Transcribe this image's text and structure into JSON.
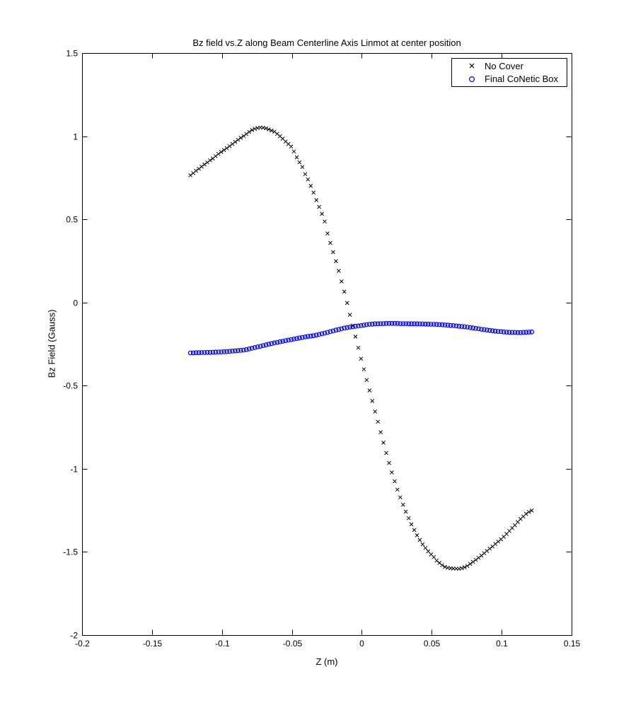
{
  "figure": {
    "title": "Bz field vs.Z along Beam Centerline Axis Linmot at center position",
    "xlabel": "Z (m)",
    "ylabel": "Bz Field (Gauss)"
  },
  "legend": {
    "items": [
      {
        "label": "No Cover",
        "marker": "x",
        "color": "#000000"
      },
      {
        "label": "Final CoNetic Box",
        "marker": "circle",
        "color": "#0000ff"
      }
    ]
  },
  "chart_data": {
    "type": "scatter",
    "title": "Bz field vs.Z along Beam Centerline Axis Linmot at center position",
    "xlabel": "Z (m)",
    "ylabel": "Bz Field (Gauss)",
    "xlim": [
      -0.2,
      0.15
    ],
    "ylim": [
      -2,
      1.5
    ],
    "xticks": [
      -0.2,
      -0.15,
      -0.1,
      -0.05,
      0,
      0.05,
      0.1,
      0.15
    ],
    "xtick_labels": [
      "-0.2",
      "-0.15",
      "-0.1",
      "-0.05",
      "0",
      "0.05",
      "0.1",
      "0.15"
    ],
    "yticks": [
      1.5,
      1,
      0.5,
      0,
      -0.5,
      -1,
      -1.5,
      -2
    ],
    "ytick_labels": [
      "1.5",
      "1",
      "0.5",
      "0",
      "-0.5",
      "-1",
      "-1.5",
      "-2"
    ],
    "grid": false,
    "legend_position": "upper-right",
    "series": [
      {
        "name": "No Cover",
        "marker": "x",
        "color": "#000000",
        "points": [
          [
            -0.1225,
            0.765
          ],
          [
            -0.1205,
            0.778
          ],
          [
            -0.1185,
            0.792
          ],
          [
            -0.1165,
            0.804
          ],
          [
            -0.1145,
            0.817
          ],
          [
            -0.1125,
            0.83
          ],
          [
            -0.1105,
            0.842
          ],
          [
            -0.1085,
            0.855
          ],
          [
            -0.1065,
            0.866
          ],
          [
            -0.1045,
            0.88
          ],
          [
            -0.1025,
            0.893
          ],
          [
            -0.1005,
            0.905
          ],
          [
            -0.0985,
            0.917
          ],
          [
            -0.0965,
            0.928
          ],
          [
            -0.0945,
            0.94
          ],
          [
            -0.0925,
            0.953
          ],
          [
            -0.0905,
            0.966
          ],
          [
            -0.0885,
            0.978
          ],
          [
            -0.0865,
            0.99
          ],
          [
            -0.0845,
            1.001
          ],
          [
            -0.0825,
            1.013
          ],
          [
            -0.0805,
            1.026
          ],
          [
            -0.0785,
            1.037
          ],
          [
            -0.0765,
            1.044
          ],
          [
            -0.0745,
            1.049
          ],
          [
            -0.0725,
            1.052
          ],
          [
            -0.0705,
            1.051
          ],
          [
            -0.0685,
            1.047
          ],
          [
            -0.0665,
            1.041
          ],
          [
            -0.0645,
            1.034
          ],
          [
            -0.0625,
            1.027
          ],
          [
            -0.0605,
            1.014
          ],
          [
            -0.0585,
            1.0
          ],
          [
            -0.0565,
            0.985
          ],
          [
            -0.0545,
            0.968
          ],
          [
            -0.0525,
            0.953
          ],
          [
            -0.0505,
            0.938
          ],
          [
            -0.0485,
            0.908
          ],
          [
            -0.0465,
            0.873
          ],
          [
            -0.0445,
            0.843
          ],
          [
            -0.0425,
            0.815
          ],
          [
            -0.0405,
            0.772
          ],
          [
            -0.0385,
            0.74
          ],
          [
            -0.0365,
            0.701
          ],
          [
            -0.0345,
            0.661
          ],
          [
            -0.0325,
            0.616
          ],
          [
            -0.0305,
            0.575
          ],
          [
            -0.0285,
            0.533
          ],
          [
            -0.0265,
            0.487
          ],
          [
            -0.0245,
            0.415
          ],
          [
            -0.0225,
            0.358
          ],
          [
            -0.0205,
            0.303
          ],
          [
            -0.0185,
            0.248
          ],
          [
            -0.0165,
            0.19
          ],
          [
            -0.0145,
            0.127
          ],
          [
            -0.0125,
            0.065
          ],
          [
            -0.0105,
            -0.003
          ],
          [
            -0.0085,
            -0.074
          ],
          [
            -0.0065,
            -0.14
          ],
          [
            -0.0045,
            -0.205
          ],
          [
            -0.0025,
            -0.272
          ],
          [
            -0.0005,
            -0.338
          ],
          [
            0.0015,
            -0.402
          ],
          [
            0.0035,
            -0.466
          ],
          [
            0.0055,
            -0.529
          ],
          [
            0.0075,
            -0.592
          ],
          [
            0.0095,
            -0.656
          ],
          [
            0.0115,
            -0.717
          ],
          [
            0.0135,
            -0.78
          ],
          [
            0.0155,
            -0.843
          ],
          [
            0.0175,
            -0.905
          ],
          [
            0.0195,
            -0.965
          ],
          [
            0.0215,
            -1.022
          ],
          [
            0.0235,
            -1.075
          ],
          [
            0.0255,
            -1.125
          ],
          [
            0.0275,
            -1.172
          ],
          [
            0.0295,
            -1.216
          ],
          [
            0.0315,
            -1.258
          ],
          [
            0.0335,
            -1.297
          ],
          [
            0.0355,
            -1.334
          ],
          [
            0.0375,
            -1.368
          ],
          [
            0.0395,
            -1.4
          ],
          [
            0.0415,
            -1.428
          ],
          [
            0.0435,
            -1.454
          ],
          [
            0.0455,
            -1.476
          ],
          [
            0.0475,
            -1.496
          ],
          [
            0.0495,
            -1.515
          ],
          [
            0.0515,
            -1.531
          ],
          [
            0.0535,
            -1.552
          ],
          [
            0.0555,
            -1.566
          ],
          [
            0.0575,
            -1.58
          ],
          [
            0.0595,
            -1.59
          ],
          [
            0.0615,
            -1.595
          ],
          [
            0.0635,
            -1.598
          ],
          [
            0.0655,
            -1.6
          ],
          [
            0.0675,
            -1.601
          ],
          [
            0.0695,
            -1.601
          ],
          [
            0.0715,
            -1.598
          ],
          [
            0.0735,
            -1.592
          ],
          [
            0.0755,
            -1.584
          ],
          [
            0.0775,
            -1.572
          ],
          [
            0.0795,
            -1.56
          ],
          [
            0.0815,
            -1.548
          ],
          [
            0.0835,
            -1.535
          ],
          [
            0.0855,
            -1.522
          ],
          [
            0.0875,
            -1.508
          ],
          [
            0.0895,
            -1.494
          ],
          [
            0.0915,
            -1.48
          ],
          [
            0.0935,
            -1.467
          ],
          [
            0.0955,
            -1.452
          ],
          [
            0.0975,
            -1.438
          ],
          [
            0.0995,
            -1.424
          ],
          [
            0.1015,
            -1.409
          ],
          [
            0.1035,
            -1.392
          ],
          [
            0.1055,
            -1.374
          ],
          [
            0.1075,
            -1.356
          ],
          [
            0.1095,
            -1.339
          ],
          [
            0.1115,
            -1.32
          ],
          [
            0.1135,
            -1.302
          ],
          [
            0.1155,
            -1.287
          ],
          [
            0.1175,
            -1.271
          ],
          [
            0.1195,
            -1.259
          ],
          [
            0.1215,
            -1.251
          ]
        ]
      },
      {
        "name": "Final CoNetic Box",
        "marker": "circle",
        "color": "#0000ff",
        "points": [
          [
            -0.1225,
            -0.303
          ],
          [
            -0.1205,
            -0.303
          ],
          [
            -0.1185,
            -0.302
          ],
          [
            -0.1165,
            -0.302
          ],
          [
            -0.1145,
            -0.301
          ],
          [
            -0.1125,
            -0.301
          ],
          [
            -0.1105,
            -0.3
          ],
          [
            -0.1085,
            -0.3
          ],
          [
            -0.1065,
            -0.299
          ],
          [
            -0.1045,
            -0.298
          ],
          [
            -0.1025,
            -0.297
          ],
          [
            -0.1005,
            -0.297
          ],
          [
            -0.0985,
            -0.296
          ],
          [
            -0.0965,
            -0.295
          ],
          [
            -0.0945,
            -0.294
          ],
          [
            -0.0925,
            -0.292
          ],
          [
            -0.0905,
            -0.291
          ],
          [
            -0.0885,
            -0.289
          ],
          [
            -0.0865,
            -0.288
          ],
          [
            -0.0845,
            -0.286
          ],
          [
            -0.0825,
            -0.283
          ],
          [
            -0.0805,
            -0.279
          ],
          [
            -0.0785,
            -0.275
          ],
          [
            -0.0765,
            -0.271
          ],
          [
            -0.0745,
            -0.267
          ],
          [
            -0.0725,
            -0.263
          ],
          [
            -0.0705,
            -0.259
          ],
          [
            -0.0685,
            -0.255
          ],
          [
            -0.0665,
            -0.251
          ],
          [
            -0.0645,
            -0.247
          ],
          [
            -0.0625,
            -0.243
          ],
          [
            -0.0605,
            -0.24
          ],
          [
            -0.0585,
            -0.236
          ],
          [
            -0.0565,
            -0.233
          ],
          [
            -0.0545,
            -0.229
          ],
          [
            -0.0525,
            -0.226
          ],
          [
            -0.0505,
            -0.223
          ],
          [
            -0.0485,
            -0.22
          ],
          [
            -0.0465,
            -0.217
          ],
          [
            -0.0445,
            -0.213
          ],
          [
            -0.0425,
            -0.21
          ],
          [
            -0.0405,
            -0.207
          ],
          [
            -0.0385,
            -0.204
          ],
          [
            -0.0365,
            -0.202
          ],
          [
            -0.0345,
            -0.2
          ],
          [
            -0.0325,
            -0.196
          ],
          [
            -0.0305,
            -0.192
          ],
          [
            -0.0285,
            -0.188
          ],
          [
            -0.0265,
            -0.184
          ],
          [
            -0.0245,
            -0.18
          ],
          [
            -0.0225,
            -0.175
          ],
          [
            -0.0205,
            -0.171
          ],
          [
            -0.0185,
            -0.166
          ],
          [
            -0.0165,
            -0.162
          ],
          [
            -0.0145,
            -0.158
          ],
          [
            -0.0125,
            -0.154
          ],
          [
            -0.0105,
            -0.151
          ],
          [
            -0.0085,
            -0.148
          ],
          [
            -0.0065,
            -0.146
          ],
          [
            -0.0045,
            -0.143
          ],
          [
            -0.0025,
            -0.141
          ],
          [
            -0.0005,
            -0.139
          ],
          [
            0.0015,
            -0.136
          ],
          [
            0.0035,
            -0.133
          ],
          [
            0.0055,
            -0.131
          ],
          [
            0.0075,
            -0.13
          ],
          [
            0.0095,
            -0.128
          ],
          [
            0.0115,
            -0.128
          ],
          [
            0.0135,
            -0.127
          ],
          [
            0.0155,
            -0.127
          ],
          [
            0.0175,
            -0.126
          ],
          [
            0.0195,
            -0.126
          ],
          [
            0.0215,
            -0.126
          ],
          [
            0.0235,
            -0.126
          ],
          [
            0.0255,
            -0.126
          ],
          [
            0.0275,
            -0.127
          ],
          [
            0.0295,
            -0.127
          ],
          [
            0.0315,
            -0.127
          ],
          [
            0.0335,
            -0.128
          ],
          [
            0.0355,
            -0.128
          ],
          [
            0.0375,
            -0.128
          ],
          [
            0.0395,
            -0.128
          ],
          [
            0.0415,
            -0.129
          ],
          [
            0.0435,
            -0.129
          ],
          [
            0.0455,
            -0.13
          ],
          [
            0.0475,
            -0.13
          ],
          [
            0.0495,
            -0.131
          ],
          [
            0.0515,
            -0.131
          ],
          [
            0.0535,
            -0.132
          ],
          [
            0.0555,
            -0.133
          ],
          [
            0.0575,
            -0.134
          ],
          [
            0.0595,
            -0.135
          ],
          [
            0.0615,
            -0.136
          ],
          [
            0.0635,
            -0.138
          ],
          [
            0.0655,
            -0.139
          ],
          [
            0.0675,
            -0.141
          ],
          [
            0.0695,
            -0.143
          ],
          [
            0.0715,
            -0.144
          ],
          [
            0.0735,
            -0.146
          ],
          [
            0.0755,
            -0.148
          ],
          [
            0.0775,
            -0.151
          ],
          [
            0.0795,
            -0.153
          ],
          [
            0.0815,
            -0.156
          ],
          [
            0.0835,
            -0.158
          ],
          [
            0.0855,
            -0.161
          ],
          [
            0.0875,
            -0.163
          ],
          [
            0.0895,
            -0.166
          ],
          [
            0.0915,
            -0.168
          ],
          [
            0.0935,
            -0.17
          ],
          [
            0.0955,
            -0.172
          ],
          [
            0.0975,
            -0.174
          ],
          [
            0.0995,
            -0.175
          ],
          [
            0.1015,
            -0.177
          ],
          [
            0.1035,
            -0.178
          ],
          [
            0.1055,
            -0.179
          ],
          [
            0.1075,
            -0.18
          ],
          [
            0.1095,
            -0.18
          ],
          [
            0.1115,
            -0.181
          ],
          [
            0.1135,
            -0.181
          ],
          [
            0.1155,
            -0.18
          ],
          [
            0.1175,
            -0.179
          ],
          [
            0.1195,
            -0.178
          ],
          [
            0.1215,
            -0.177
          ]
        ]
      }
    ]
  }
}
